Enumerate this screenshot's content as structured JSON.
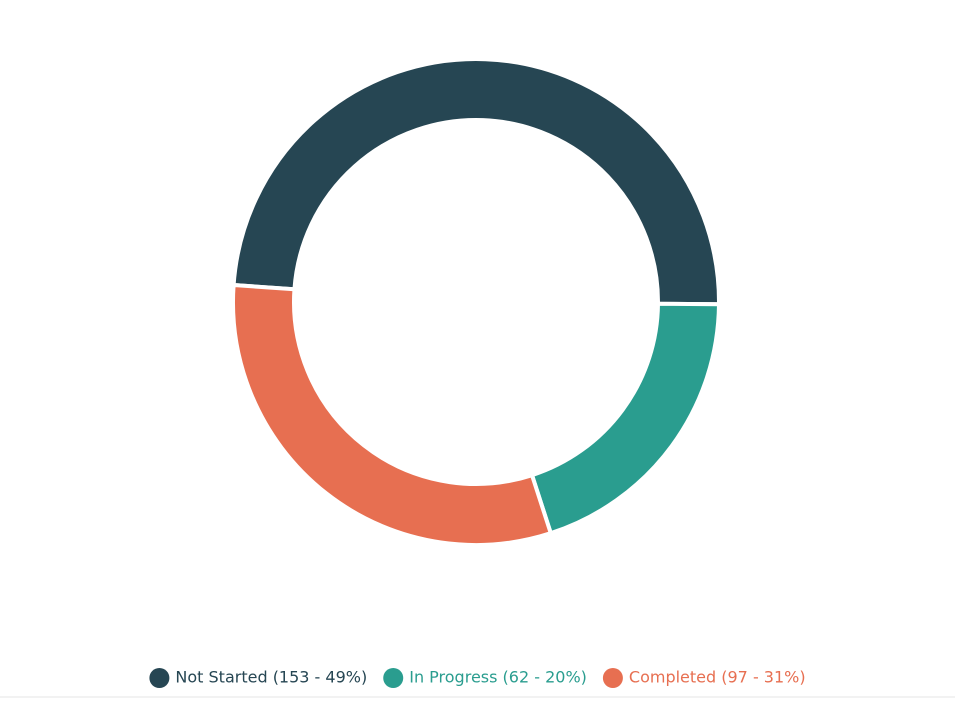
{
  "chart_data": {
    "type": "donut",
    "categories": [
      "Not Started (153 - 49%)",
      "In Progress (62 - 20%)",
      "Completed (97 - 31%)"
    ],
    "values": [
      153,
      62,
      97
    ],
    "colors": [
      "#264653",
      "#2a9d8f",
      "#e76f51"
    ]
  }
}
